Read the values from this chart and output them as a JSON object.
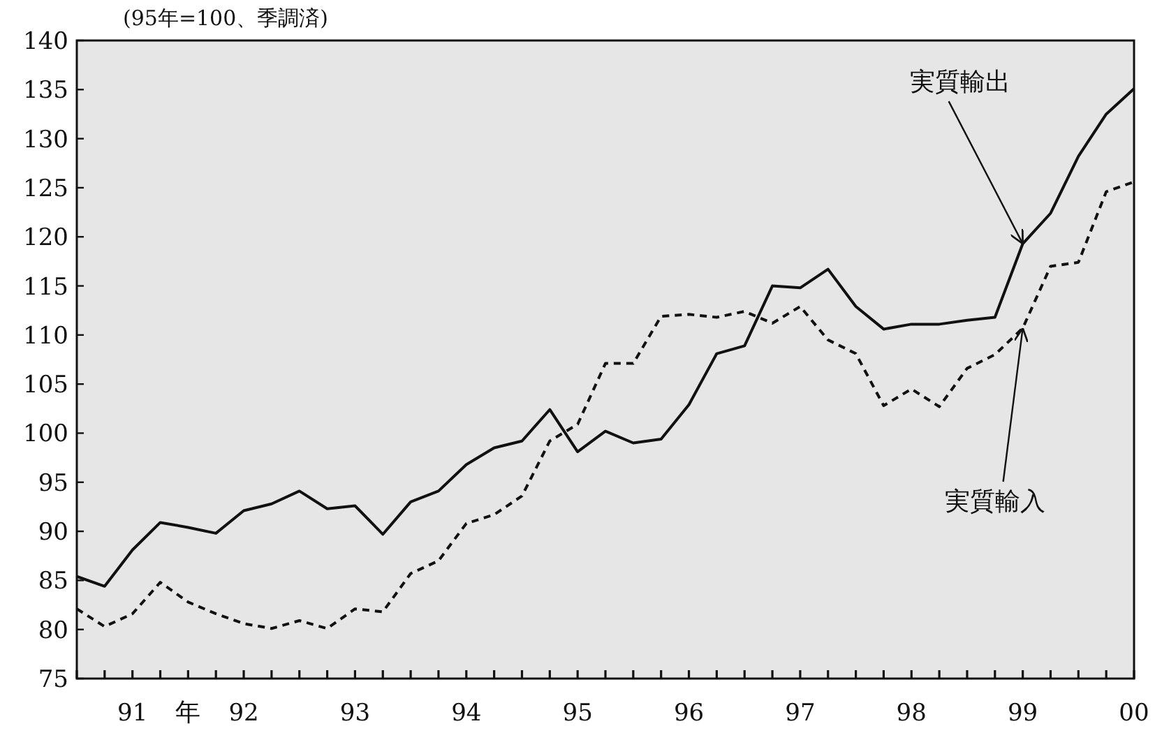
{
  "chart_data": {
    "type": "line",
    "ylabel": "(95年=100、季調済)",
    "xlabel": "年",
    "categories": [
      null,
      null,
      "91",
      null,
      null,
      null,
      "92",
      null,
      null,
      null,
      "93",
      null,
      null,
      null,
      "94",
      null,
      null,
      null,
      "95",
      null,
      null,
      null,
      "96",
      null,
      null,
      null,
      "97",
      null,
      null,
      null,
      "98",
      null,
      null,
      null,
      "99",
      null,
      null,
      null,
      "00"
    ],
    "series": [
      {
        "color": "#111111",
        "line_style": "solid",
        "values": [
          85.4,
          84.4,
          88.1,
          90.9,
          90.4,
          89.8,
          92.1,
          92.8,
          94.1,
          92.3,
          92.6,
          89.7,
          93.0,
          94.1,
          96.8,
          98.5,
          99.2,
          102.4,
          98.1,
          100.2,
          99.0,
          99.4,
          102.9,
          108.1,
          108.9,
          115.0,
          114.8,
          116.7,
          112.9,
          110.6,
          111.1,
          111.1,
          111.5,
          111.8,
          119.3,
          122.4,
          128.2,
          132.5,
          135.1
        ]
      },
      {
        "color": "#111111",
        "line_style": "dashed",
        "values": [
          82.1,
          80.3,
          81.6,
          84.8,
          82.8,
          81.6,
          80.6,
          80.1,
          80.9,
          80.1,
          82.1,
          81.8,
          85.7,
          87.0,
          90.8,
          91.7,
          93.6,
          99.2,
          100.9,
          107.1,
          107.1,
          111.9,
          112.1,
          111.8,
          112.4,
          111.2,
          112.9,
          109.5,
          108.1,
          102.8,
          104.5,
          102.7,
          106.6,
          108.0,
          110.7,
          117.0,
          117.4,
          124.6,
          125.6
        ]
      }
    ],
    "ylim": [
      75,
      140
    ],
    "yticks": [
      75,
      80,
      85,
      90,
      95,
      100,
      105,
      110,
      115,
      120,
      125,
      130,
      135,
      140
    ],
    "annotations": [
      {
        "text": "実質輸出",
        "x": "99",
        "y": 119.3
      },
      {
        "text": "実質輸入",
        "x": "99",
        "y": 110.7
      }
    ],
    "grid": false
  }
}
